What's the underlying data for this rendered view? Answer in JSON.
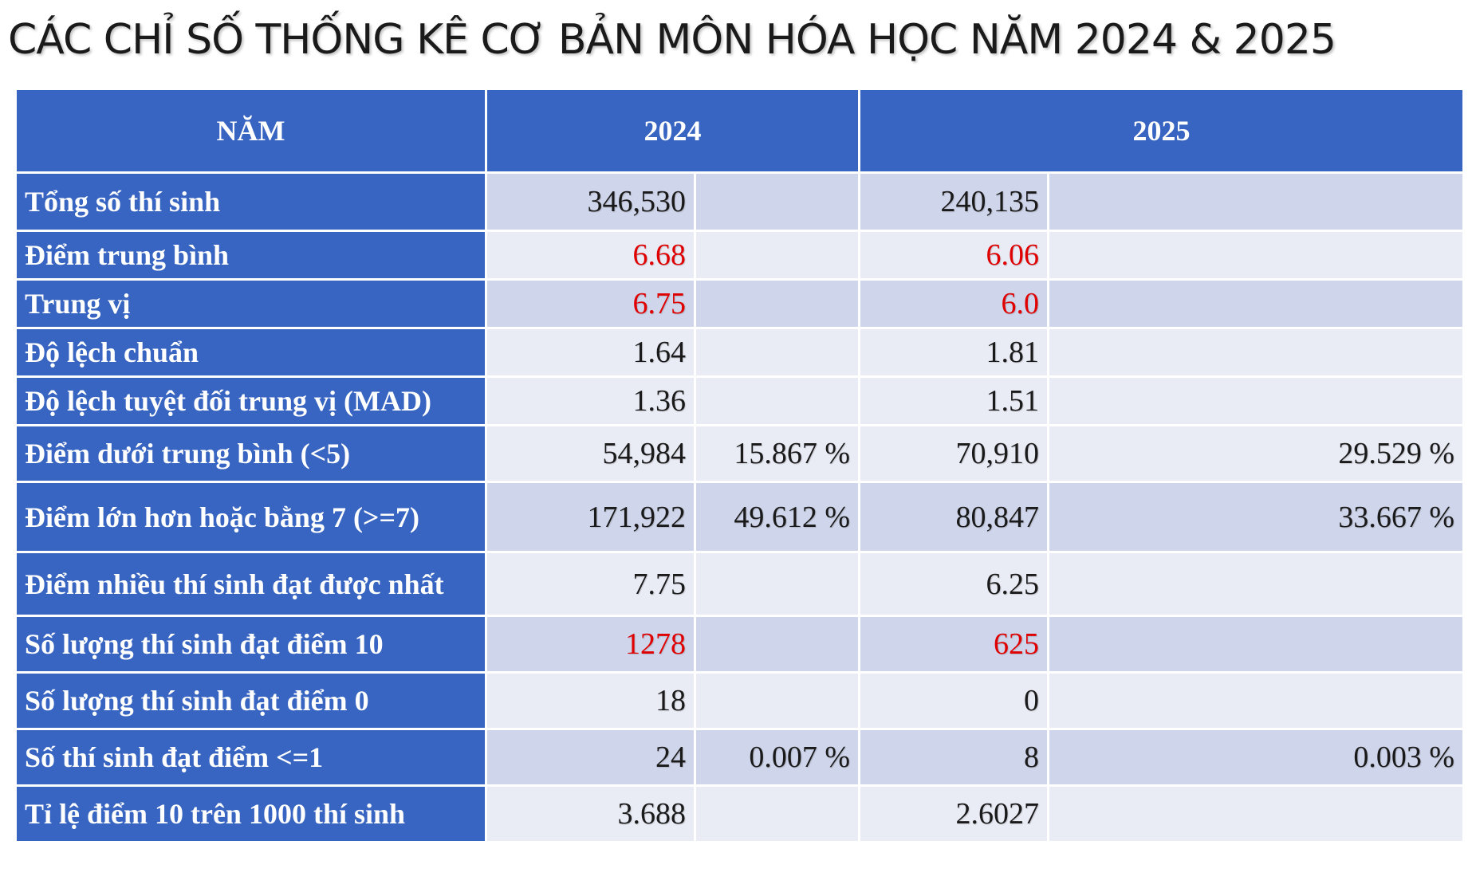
{
  "title": "CÁC CHỈ SỐ THỐNG KÊ CƠ BẢN MÔN HÓA HỌC NĂM 2024 & 2025",
  "colors": {
    "header_bg": "#3865c1",
    "row_odd_bg": "#cfd5ea",
    "row_even_bg": "#e9ebf5",
    "highlight_text": "#e00000"
  },
  "table": {
    "header": {
      "label": "NĂM",
      "year_a": "2024",
      "year_b": "2025"
    },
    "rows": [
      {
        "label": "Tổng số thí sinh",
        "v2024": "346,530",
        "p2024": "",
        "v2025": "240,135",
        "p2025": ""
      },
      {
        "label": "Điểm trung bình",
        "v2024": "6.68",
        "p2024": "",
        "v2025": "6.06",
        "p2025": ""
      },
      {
        "label": "Trung vị",
        "v2024": "6.75",
        "p2024": "",
        "v2025": "6.0",
        "p2025": ""
      },
      {
        "label": "Độ lệch chuẩn",
        "v2024": "1.64",
        "p2024": "",
        "v2025": "1.81",
        "p2025": ""
      },
      {
        "label": "Độ lệch tuyệt đối trung vị (MAD)",
        "v2024": "1.36",
        "p2024": "",
        "v2025": "1.51",
        "p2025": ""
      },
      {
        "label": "Điểm dưới trung bình (<5)",
        "v2024": "54,984",
        "p2024": "15.867 %",
        "v2025": "70,910",
        "p2025": "29.529 %"
      },
      {
        "label": "Điểm lớn hơn hoặc bằng 7 (>=7)",
        "v2024": "171,922",
        "p2024": "49.612 %",
        "v2025": "80,847",
        "p2025": "33.667 %"
      },
      {
        "label": "Điểm nhiều thí sinh đạt được nhất",
        "v2024": "7.75",
        "p2024": "",
        "v2025": "6.25",
        "p2025": ""
      },
      {
        "label": "Số lượng thí sinh đạt điểm 10",
        "v2024": "1278",
        "p2024": "",
        "v2025": "625",
        "p2025": ""
      },
      {
        "label": "Số lượng thí sinh đạt điểm 0",
        "v2024": "18",
        "p2024": "",
        "v2025": "0",
        "p2025": ""
      },
      {
        "label": "Số thí sinh đạt điểm <=1",
        "v2024": "24",
        "p2024": "0.007 %",
        "v2025": "8",
        "p2025": "0.003 %"
      },
      {
        "label": "Tỉ lệ điểm 10 trên 1000 thí sinh",
        "v2024": "3.688",
        "p2024": "",
        "v2025": "2.6027",
        "p2025": ""
      }
    ]
  }
}
